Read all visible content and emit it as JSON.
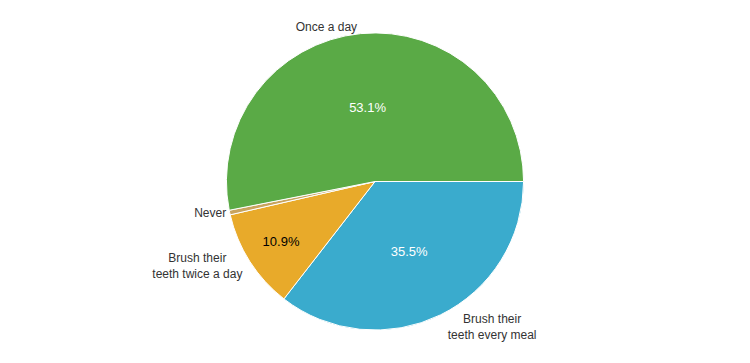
{
  "chart_data": {
    "type": "pie",
    "categories": [
      "Brush their\nteeth every meal",
      "Brush their\nteeth twice a day",
      "Never",
      "Once a day"
    ],
    "values": [
      35.5,
      10.9,
      0.5,
      53.1
    ],
    "value_labels": [
      "35.5%",
      "10.9%",
      null,
      "53.1%"
    ],
    "colors": [
      "#3aabcd",
      "#e8aa2a",
      "#c8a45e",
      "#5aaa46"
    ],
    "data_labels": true
  }
}
